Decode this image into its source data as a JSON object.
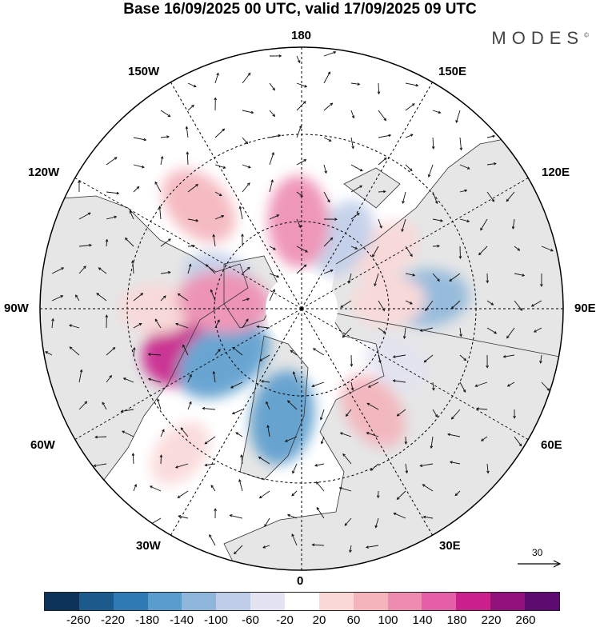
{
  "title": "Base 16/09/2025 00 UTC, valid 17/09/2025 09 UTC",
  "brand": "MODES",
  "brand_mark": "©",
  "longitude_labels": {
    "top": "180",
    "bottom": "0",
    "left": "90W",
    "right": "90E",
    "upper_left_1": "150W",
    "upper_left_2": "120W",
    "upper_right_1": "150E",
    "upper_right_2": "120E",
    "lower_left_1": "60W",
    "lower_left_2": "30W",
    "lower_right_1": "60E",
    "lower_right_2": "30E"
  },
  "reference_vector": {
    "value": "30"
  },
  "colors": {
    "land": "#e6e6e6",
    "ocean": "#ffffff",
    "coast": "#333333",
    "grid": "#000000",
    "arrow": "#111111"
  },
  "colorbar": {
    "colors": [
      "#0d3458",
      "#1c5a8c",
      "#2f7ab5",
      "#5a9ccd",
      "#8fb7db",
      "#bfcde8",
      "#e3e3f2",
      "#ffffff",
      "#fad8d8",
      "#f4b4bc",
      "#ee8cb0",
      "#e55fa6",
      "#c9208b",
      "#92117a",
      "#5e0b6f"
    ],
    "tick_labels": [
      "-260",
      "-220",
      "-180",
      "-140",
      "-100",
      "-60",
      "-20",
      "20",
      "60",
      "100",
      "140",
      "180",
      "220",
      "260"
    ]
  },
  "anomaly_blobs": [
    {
      "lon": 290,
      "lat": 52,
      "value": 200
    },
    {
      "lon": 303,
      "lat": 58,
      "value": -150
    },
    {
      "lon": 350,
      "lat": 52,
      "value": -130
    },
    {
      "lon": 35,
      "lat": 47,
      "value": 80
    },
    {
      "lon": 60,
      "lat": 52,
      "value": -40
    },
    {
      "lon": 95,
      "lat": 47,
      "value": -100
    },
    {
      "lon": 95,
      "lat": 60,
      "value": 60
    },
    {
      "lon": 125,
      "lat": 55,
      "value": 60
    },
    {
      "lon": 150,
      "lat": 62,
      "value": -80
    },
    {
      "lon": 182,
      "lat": 60,
      "value": 120
    },
    {
      "lon": 225,
      "lat": 40,
      "value": 100
    },
    {
      "lon": 250,
      "lat": 60,
      "value": -60
    },
    {
      "lon": 270,
      "lat": 40,
      "value": 60
    },
    {
      "lon": 265,
      "lat": 63,
      "value": 120
    },
    {
      "lon": 320,
      "lat": 25,
      "value": 50
    }
  ]
}
